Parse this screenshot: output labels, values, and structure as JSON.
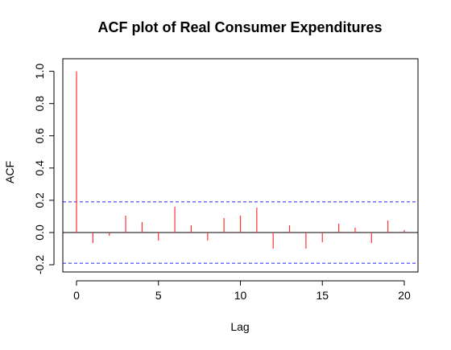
{
  "chart_data": {
    "type": "acf",
    "title": "ACF plot of Real Consumer Expenditures",
    "xlabel": "Lag",
    "ylabel": "ACF",
    "xlim": [
      0,
      21
    ],
    "ylim": [
      -0.25,
      1.0
    ],
    "xticks": [
      0,
      5,
      10,
      15,
      20
    ],
    "yticks": [
      -0.2,
      0.0,
      0.2,
      0.4,
      0.6,
      0.8,
      1.0
    ],
    "ytick_labels": [
      "-0.2",
      "0.0",
      "0.2",
      "0.4",
      "0.6",
      "0.8",
      "1.0"
    ],
    "lags": [
      0,
      1,
      2,
      3,
      4,
      5,
      6,
      7,
      8,
      9,
      10,
      11,
      12,
      13,
      14,
      15,
      16,
      17,
      18,
      19,
      20
    ],
    "acf": [
      1.0,
      -0.065,
      -0.02,
      0.105,
      0.065,
      -0.05,
      0.16,
      0.045,
      -0.05,
      0.09,
      0.105,
      0.155,
      -0.1,
      0.045,
      -0.1,
      -0.06,
      0.055,
      0.03,
      -0.065,
      0.075,
      0.015
    ],
    "conf_bound": 0.19,
    "colors": {
      "spike": "#ff3333",
      "confidence_line": "#2222ff",
      "axis": "#000000",
      "zero_line": "#000000"
    }
  }
}
